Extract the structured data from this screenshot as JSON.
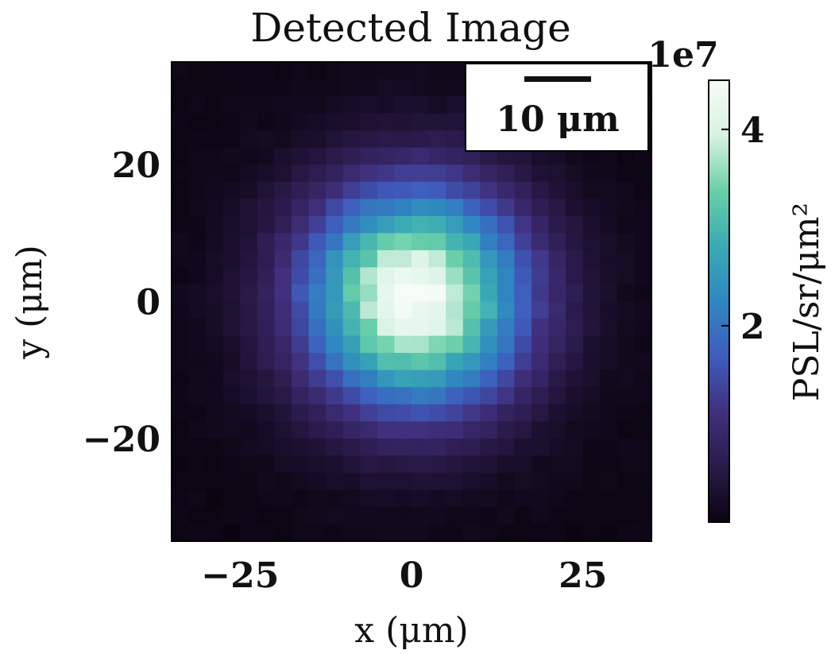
{
  "chart_data": {
    "type": "heatmap",
    "title": "Detected Image",
    "xlabel": "x (μm)",
    "ylabel": "y (μm)",
    "xlim": [
      -35,
      35
    ],
    "ylim": [
      -35,
      35
    ],
    "x_ticks": [
      -25,
      0,
      25
    ],
    "x_tick_labels": [
      "−25",
      "0",
      "25"
    ],
    "y_ticks": [
      -20,
      0,
      20
    ],
    "y_tick_labels": [
      "−20",
      "0",
      "20"
    ],
    "grid": false,
    "pixel_size_um": 2.5,
    "grid_cells": 28,
    "peak_center_um": [
      0.5,
      0.5
    ],
    "peak_value": 44000000.0,
    "gaussian_sigma_um": 11.5,
    "colormap": "mako",
    "colormap_stops": [
      "#0b0410",
      "#2a1a4a",
      "#40307e",
      "#3f5cbe",
      "#2f87c0",
      "#3aaab4",
      "#6acfa8",
      "#d8f2e4",
      "#f5fcf6"
    ],
    "colorbar": {
      "label": "PSL/sr/μm²",
      "range": [
        0,
        45000000.0
      ],
      "ticks": [
        20000000.0,
        40000000.0
      ],
      "tick_labels": [
        "2",
        "4"
      ],
      "offset_text": "1e7",
      "placement": "right"
    },
    "scale_bar": {
      "label": "10 μm",
      "length_um": 10,
      "placement": "top-right"
    }
  }
}
